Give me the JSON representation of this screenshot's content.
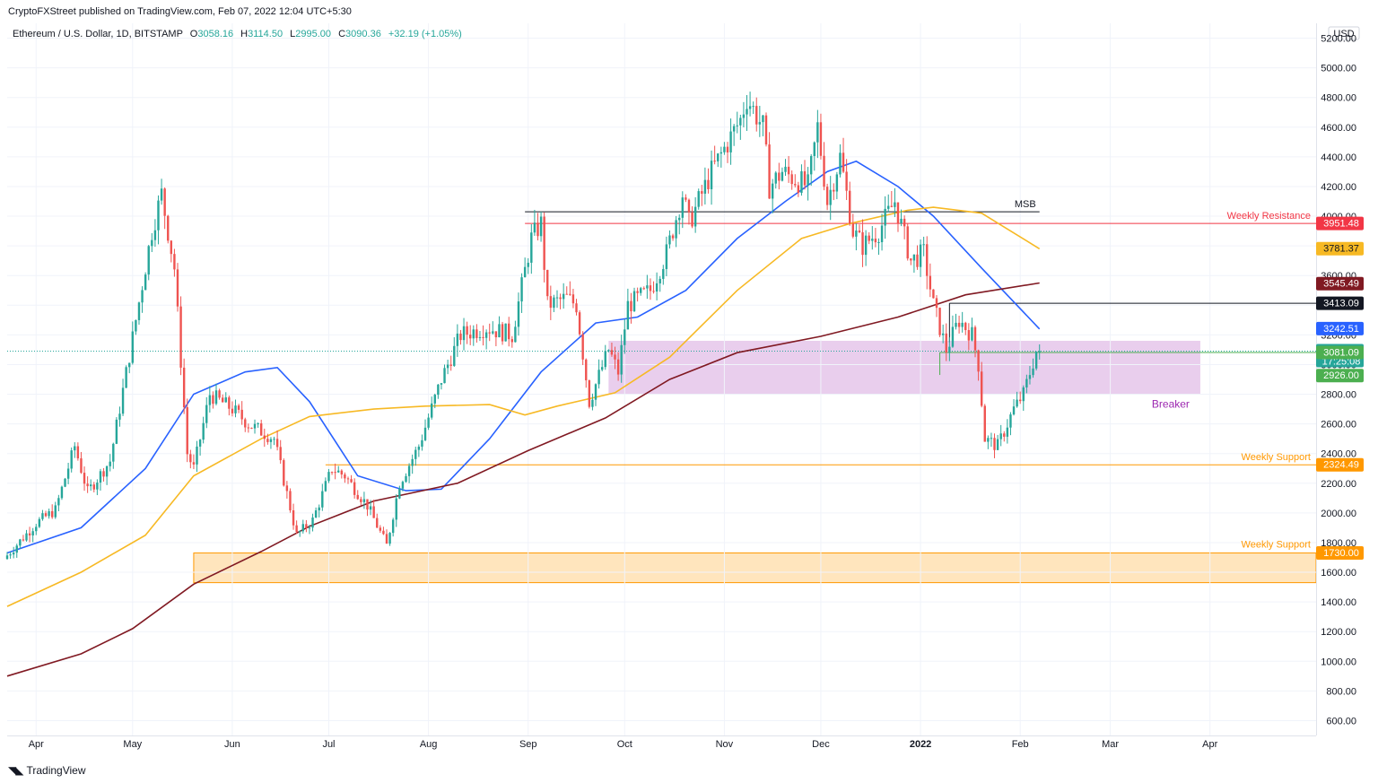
{
  "header": {
    "publisher": "CryptoFXStreet published on TradingView.com, Feb 07, 2022 12:04 UTC+5:30"
  },
  "legend": {
    "symbol": "Ethereum / U.S. Dollar, 1D, BITSTAMP",
    "open_label": "O",
    "open": "3058.16",
    "high_label": "H",
    "high": "3114.50",
    "low_label": "L",
    "low": "2995.00",
    "close_label": "C",
    "close": "3090.36",
    "change": "+32.19 (+1.05%)"
  },
  "currency": "USD",
  "footer": {
    "logo_text": "TradingView"
  },
  "colors": {
    "up": "#26a69a",
    "down": "#ef5350",
    "ma_blue": "#2962ff",
    "ma_yellow": "#f7b924",
    "ma_maroon": "#801922",
    "breaker_zone": "#e1bee7",
    "support_zone": "#ffe0b2",
    "resistance": "#f23645",
    "support": "#ff9800",
    "msb": "#131722",
    "green_level": "#4caf50"
  },
  "chart_data": {
    "type": "candlestick",
    "title": "Ethereum / U.S. Dollar, 1D, BITSTAMP",
    "ylim": [
      500,
      5300
    ],
    "y_ticks": [
      "600.00",
      "800.00",
      "1000.00",
      "1200.00",
      "1400.00",
      "1600.00",
      "1800.00",
      "2000.00",
      "2200.00",
      "2400.00",
      "2600.00",
      "2800.00",
      "3000.00",
      "3200.00",
      "3400.00",
      "3600.00",
      "3800.00",
      "4000.00",
      "4200.00",
      "4400.00",
      "4600.00",
      "4800.00",
      "5000.00",
      "5200.00"
    ],
    "x_ticks": [
      "Apr",
      "May",
      "Jun",
      "Jul",
      "Aug",
      "Sep",
      "Oct",
      "Nov",
      "Dec",
      "2022",
      "Feb",
      "Mar",
      "Apr"
    ],
    "x_tick_dates": [
      "2021-04-01",
      "2021-05-01",
      "2021-06-01",
      "2021-07-01",
      "2021-08-01",
      "2021-09-01",
      "2021-10-01",
      "2021-11-01",
      "2021-12-01",
      "2022-01-01",
      "2022-02-01",
      "2022-03-01",
      "2022-04-01"
    ],
    "date_range": [
      "2021-03-23",
      "2022-05-04"
    ],
    "price_path": [
      [
        "2021-03-23",
        1690
      ],
      [
        "2021-04-02",
        1930
      ],
      [
        "2021-04-08",
        2020
      ],
      [
        "2021-04-14",
        2450
      ],
      [
        "2021-04-18",
        2140
      ],
      [
        "2021-04-25",
        2350
      ],
      [
        "2021-05-03",
        3300
      ],
      [
        "2021-05-08",
        3900
      ],
      [
        "2021-05-11",
        4150
      ],
      [
        "2021-05-15",
        3650
      ],
      [
        "2021-05-19",
        2400
      ],
      [
        "2021-05-21",
        2300
      ],
      [
        "2021-05-26",
        2800
      ],
      [
        "2021-06-02",
        2700
      ],
      [
        "2021-06-07",
        2600
      ],
      [
        "2021-06-15",
        2500
      ],
      [
        "2021-06-22",
        1850
      ],
      [
        "2021-06-27",
        1950
      ],
      [
        "2021-07-03",
        2300
      ],
      [
        "2021-07-07",
        2250
      ],
      [
        "2021-07-14",
        2050
      ],
      [
        "2021-07-20",
        1780
      ],
      [
        "2021-07-24",
        2200
      ],
      [
        "2021-07-30",
        2450
      ],
      [
        "2021-08-06",
        2900
      ],
      [
        "2021-08-12",
        3200
      ],
      [
        "2021-08-20",
        3250
      ],
      [
        "2021-08-28",
        3200
      ],
      [
        "2021-09-03",
        3850
      ],
      [
        "2021-09-06",
        3950
      ],
      [
        "2021-09-08",
        3400
      ],
      [
        "2021-09-14",
        3450
      ],
      [
        "2021-09-17",
        3400
      ],
      [
        "2021-09-21",
        2750
      ],
      [
        "2021-09-27",
        3100
      ],
      [
        "2021-09-30",
        2950
      ],
      [
        "2021-10-03",
        3400
      ],
      [
        "2021-10-10",
        3500
      ],
      [
        "2021-10-15",
        3750
      ],
      [
        "2021-10-20",
        4150
      ],
      [
        "2021-10-22",
        3950
      ],
      [
        "2021-10-29",
        4300
      ],
      [
        "2021-11-07",
        4650
      ],
      [
        "2021-11-09",
        4800
      ],
      [
        "2021-11-14",
        4600
      ],
      [
        "2021-11-16",
        4200
      ],
      [
        "2021-11-20",
        4300
      ],
      [
        "2021-11-24",
        4250
      ],
      [
        "2021-11-28",
        4200
      ],
      [
        "2021-12-01",
        4600
      ],
      [
        "2021-12-04",
        4100
      ],
      [
        "2021-12-08",
        4400
      ],
      [
        "2021-12-12",
        3900
      ],
      [
        "2021-12-15",
        3800
      ],
      [
        "2021-12-20",
        3900
      ],
      [
        "2021-12-25",
        4100
      ],
      [
        "2021-12-30",
        3700
      ],
      [
        "2022-01-03",
        3750
      ],
      [
        "2022-01-06",
        3400
      ],
      [
        "2022-01-10",
        3100
      ],
      [
        "2022-01-14",
        3300
      ],
      [
        "2022-01-18",
        3200
      ],
      [
        "2022-01-20",
        3000
      ],
      [
        "2022-01-22",
        2500
      ],
      [
        "2022-01-26",
        2450
      ],
      [
        "2022-01-31",
        2700
      ],
      [
        "2022-02-03",
        2800
      ],
      [
        "2022-02-07",
        3090
      ]
    ],
    "series": [
      {
        "name": "",
        "color": "blue",
        "points": [
          [
            "2021-03-23",
            1730
          ],
          [
            "2021-04-15",
            1900
          ],
          [
            "2021-05-05",
            2300
          ],
          [
            "2021-05-20",
            2800
          ],
          [
            "2021-06-05",
            2950
          ],
          [
            "2021-06-15",
            2980
          ],
          [
            "2021-06-25",
            2750
          ],
          [
            "2021-07-10",
            2250
          ],
          [
            "2021-07-25",
            2150
          ],
          [
            "2021-08-05",
            2160
          ],
          [
            "2021-08-20",
            2500
          ],
          [
            "2021-09-05",
            2950
          ],
          [
            "2021-09-22",
            3280
          ],
          [
            "2021-10-05",
            3320
          ],
          [
            "2021-10-20",
            3500
          ],
          [
            "2021-11-05",
            3850
          ],
          [
            "2021-11-20",
            4100
          ],
          [
            "2021-12-03",
            4300
          ],
          [
            "2021-12-12",
            4370
          ],
          [
            "2021-12-25",
            4200
          ],
          [
            "2022-01-05",
            4000
          ],
          [
            "2022-01-20",
            3650
          ],
          [
            "2022-02-07",
            3240
          ]
        ]
      },
      {
        "name": "",
        "color": "yellow",
        "points": [
          [
            "2021-03-23",
            1370
          ],
          [
            "2021-04-15",
            1600
          ],
          [
            "2021-05-05",
            1850
          ],
          [
            "2021-05-20",
            2250
          ],
          [
            "2021-06-10",
            2500
          ],
          [
            "2021-06-25",
            2650
          ],
          [
            "2021-07-15",
            2700
          ],
          [
            "2021-07-31",
            2720
          ],
          [
            "2021-08-20",
            2730
          ],
          [
            "2021-08-31",
            2660
          ],
          [
            "2021-09-10",
            2720
          ],
          [
            "2021-09-28",
            2810
          ],
          [
            "2021-10-15",
            3050
          ],
          [
            "2021-11-05",
            3500
          ],
          [
            "2021-11-25",
            3850
          ],
          [
            "2021-12-10",
            3950
          ],
          [
            "2021-12-28",
            4040
          ],
          [
            "2022-01-05",
            4060
          ],
          [
            "2022-01-20",
            4020
          ],
          [
            "2022-02-07",
            3780
          ]
        ]
      },
      {
        "name": "",
        "color": "maroon",
        "points": [
          [
            "2021-03-23",
            900
          ],
          [
            "2021-04-15",
            1050
          ],
          [
            "2021-05-01",
            1220
          ],
          [
            "2021-05-20",
            1520
          ],
          [
            "2021-06-10",
            1740
          ],
          [
            "2021-06-25",
            1910
          ],
          [
            "2021-07-15",
            2080
          ],
          [
            "2021-08-10",
            2200
          ],
          [
            "2021-09-01",
            2420
          ],
          [
            "2021-09-25",
            2640
          ],
          [
            "2021-10-15",
            2900
          ],
          [
            "2021-11-05",
            3080
          ],
          [
            "2021-12-01",
            3190
          ],
          [
            "2021-12-25",
            3320
          ],
          [
            "2022-01-15",
            3470
          ],
          [
            "2022-02-07",
            3550
          ]
        ]
      }
    ],
    "levels": [
      {
        "label": "MSB",
        "value": 4030,
        "start": "2021-08-31",
        "end": "2022-02-07",
        "color": "black"
      },
      {
        "label": "Weekly Resistance",
        "value": 3951.48,
        "start": "2021-08-31",
        "end": "2022-05-04",
        "color": "red"
      },
      {
        "label": "",
        "value": 3413.09,
        "start": "2022-01-10",
        "end": "2022-05-04",
        "color": "black"
      },
      {
        "label": "",
        "value": 3081.09,
        "start": "2022-01-07",
        "end": "2022-05-04",
        "color": "green"
      },
      {
        "label": "Weekly Support",
        "value": 2324.49,
        "start": "2021-06-30",
        "end": "2022-05-04",
        "color": "orange"
      }
    ],
    "zones": [
      {
        "label": "Breaker",
        "low": 2800,
        "high": 3160,
        "start": "2021-09-26",
        "end": "2022-03-29",
        "color": "purple"
      },
      {
        "label": "Weekly Support",
        "low": 1530,
        "high": 1730,
        "start": "2021-05-20",
        "end": "2022-05-04",
        "color": "orange"
      }
    ],
    "price_labels": [
      {
        "text": "3951.48",
        "value": 3951.48,
        "color": "#f23645"
      },
      {
        "text": "3781.37",
        "value": 3781.37,
        "color": "#f7b924"
      },
      {
        "text": "3545.49",
        "value": 3545.49,
        "color": "#801922"
      },
      {
        "text": "3413.09",
        "value": 3413.09,
        "color": "#131722"
      },
      {
        "text": "3242.51",
        "value": 3242.51,
        "color": "#2962ff"
      },
      {
        "text": "3090.36",
        "sub": "17:25:08",
        "value": 3090.36,
        "color": "#26a69a"
      },
      {
        "text": "3081.09",
        "value": 3081.09,
        "color": "#4caf50"
      },
      {
        "text": "2926.00",
        "value": 2926.0,
        "color": "#4caf50"
      },
      {
        "text": "2324.49",
        "value": 2324.49,
        "color": "#ff9800"
      },
      {
        "text": "1730.00",
        "value": 1730.0,
        "color": "#ff9800"
      }
    ]
  }
}
